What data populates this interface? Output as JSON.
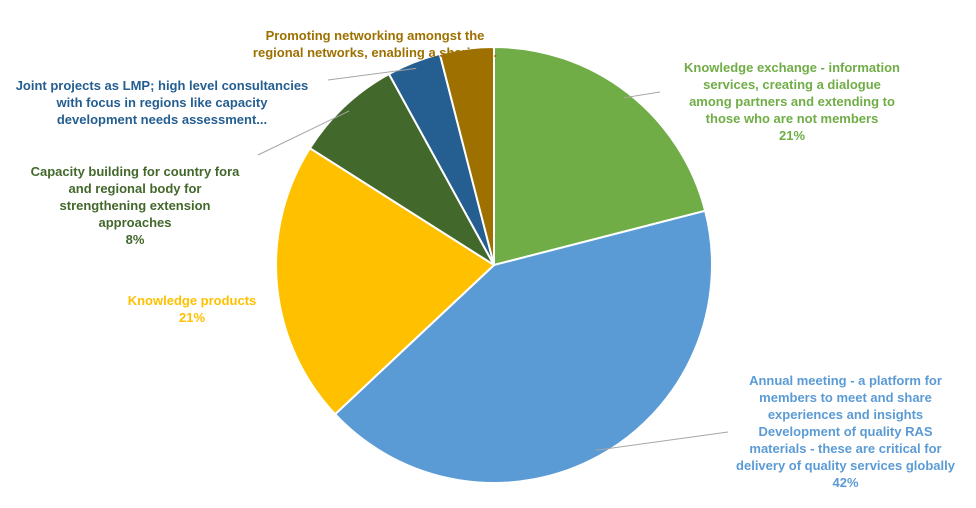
{
  "chart_data": {
    "type": "pie",
    "slices": [
      {
        "label": "Knowledge exchange - information services, creating a dialogue among partners and extending to those who are not members",
        "value": 21,
        "value_label": "21%",
        "color": "#70AD47",
        "label_color": "#70AD47"
      },
      {
        "label": "Annual meeting - a platform for members to meet and share experiences and insights Development of quality RAS materials - these are critical for delivery of quality services globally",
        "value": 42,
        "value_label": "42%",
        "color": "#5B9BD5",
        "label_color": "#5B9BD5"
      },
      {
        "label": "Knowledge products",
        "value": 21,
        "value_label": "21%",
        "color": "#FFC000",
        "label_color": "#FFC000"
      },
      {
        "label": "Capacity building for country fora and regional body for strengthening extension approaches",
        "value": 8,
        "value_label": "8%",
        "color": "#43682B",
        "label_color": "#43682B"
      },
      {
        "label": "Joint projects as LMP; high level consultancies with focus in regions like capacity development needs assessment...",
        "value": 4,
        "value_label": "",
        "color": "#255E91",
        "label_color": "#255E91"
      },
      {
        "label": "Promoting networking amongst the regional networks, enabling a sharing...",
        "value": 4,
        "value_label": "",
        "color": "#9E7000",
        "label_color": "#9E7000"
      }
    ],
    "labels_display": [
      {
        "lines": "Knowledge exchange - information\nservices, creating a dialogue\namong partners and extending to\nthose who are not members",
        "pct": "21%"
      },
      {
        "lines": "Annual meeting - a platform for\nmembers to meet and share\nexperiences and insights\nDevelopment of quality RAS\nmaterials - these are critical for\ndelivery of quality services globally",
        "pct": "42%"
      },
      {
        "lines": "Knowledge products",
        "pct": "21%"
      },
      {
        "lines": "Capacity building for country fora\nand regional body for\nstrengthening extension\napproaches",
        "pct": "8%"
      },
      {
        "lines": "Joint projects as LMP; high level consultancies\nwith focus in regions like capacity\ndevelopment needs assessment...",
        "pct": ""
      },
      {
        "lines": "Promoting networking amongst the\nregional networks, enabling a sharing...",
        "pct": ""
      }
    ],
    "start_angle_deg": 0,
    "direction": "clockwise",
    "legend": "none",
    "leader_line_color": "#A6A6A6"
  }
}
